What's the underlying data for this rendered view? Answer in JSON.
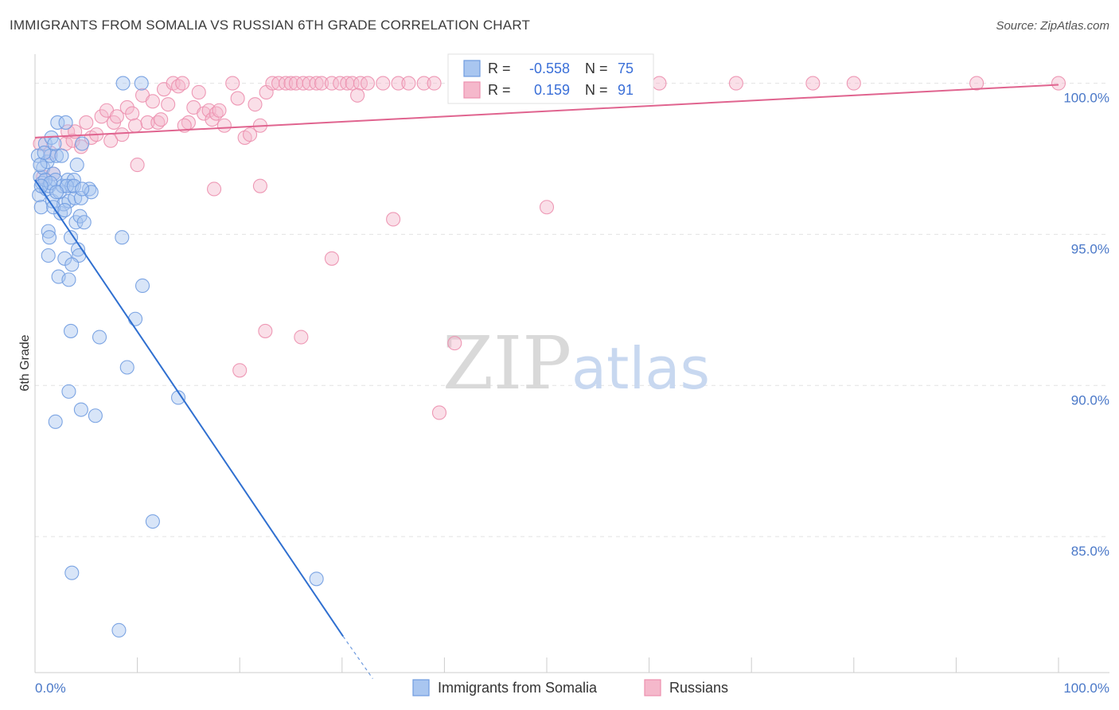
{
  "header": {
    "title": "IMMIGRANTS FROM SOMALIA VS RUSSIAN 6TH GRADE CORRELATION CHART",
    "source": "Source: ZipAtlas.com"
  },
  "colors": {
    "somalia_fill": "#a9c6f0",
    "somalia_stroke": "#6f9be0",
    "somalia_line": "#2f6fd0",
    "russia_fill": "#f5b8cb",
    "russia_stroke": "#ec8fae",
    "russia_line": "#e0648f"
  },
  "watermark": {
    "zip": "ZIP",
    "atlas": "atlas"
  },
  "stats": {
    "r_label": "R =",
    "n_label": "N =",
    "somalia": {
      "r": "-0.558",
      "n": "75"
    },
    "russia": {
      "r": "0.159",
      "n": "91"
    }
  },
  "chart_data": {
    "type": "scatter",
    "title": "IMMIGRANTS FROM SOMALIA VS RUSSIAN 6TH GRADE CORRELATION CHART",
    "xlabel": "",
    "ylabel": "6th Grade",
    "xlim": [
      0,
      100
    ],
    "ylim": [
      80.5,
      100.7
    ],
    "x_tick_labels": [
      {
        "value": 0,
        "label": "0.0%"
      },
      {
        "value": 100,
        "label": "100.0%"
      }
    ],
    "y_tick_labels": [
      {
        "value": 85,
        "label": "85.0%"
      },
      {
        "value": 90,
        "label": "90.0%"
      },
      {
        "value": 95,
        "label": "95.0%"
      },
      {
        "value": 100,
        "label": "100.0%"
      }
    ],
    "legend": [
      "Immigrants from Somalia",
      "Russians"
    ],
    "series": [
      {
        "name": "Immigrants from Somalia",
        "trend": {
          "x0": 0,
          "y0": 96.8,
          "x1": 30.1,
          "y1": 81.7,
          "dashed_to_x": 33.0,
          "dashed_to_y": 80.3
        },
        "points": [
          [
            0.3,
            97.6
          ],
          [
            0.5,
            96.9
          ],
          [
            0.4,
            96.3
          ],
          [
            0.6,
            95.9
          ],
          [
            0.8,
            97.2
          ],
          [
            0.7,
            96.7
          ],
          [
            1.0,
            98.0
          ],
          [
            1.1,
            96.5
          ],
          [
            1.2,
            97.4
          ],
          [
            1.4,
            96.6
          ],
          [
            1.5,
            97.6
          ],
          [
            1.6,
            98.2
          ],
          [
            1.7,
            96.1
          ],
          [
            1.8,
            97.0
          ],
          [
            2.0,
            96.8
          ],
          [
            2.1,
            97.6
          ],
          [
            2.2,
            98.7
          ],
          [
            2.4,
            96.4
          ],
          [
            2.5,
            95.7
          ],
          [
            2.7,
            96.6
          ],
          [
            2.8,
            96.0
          ],
          [
            2.9,
            94.2
          ],
          [
            3.0,
            98.7
          ],
          [
            3.2,
            96.8
          ],
          [
            3.3,
            96.1
          ],
          [
            3.5,
            94.9
          ],
          [
            3.6,
            96.6
          ],
          [
            3.8,
            96.8
          ],
          [
            3.9,
            96.2
          ],
          [
            4.0,
            95.4
          ],
          [
            4.1,
            97.3
          ],
          [
            4.2,
            94.5
          ],
          [
            4.3,
            94.3
          ],
          [
            4.4,
            95.6
          ],
          [
            4.5,
            96.2
          ],
          [
            4.6,
            98.0
          ],
          [
            4.8,
            95.4
          ],
          [
            5.3,
            96.5
          ],
          [
            5.5,
            96.4
          ],
          [
            1.3,
            95.1
          ],
          [
            1.3,
            94.3
          ],
          [
            1.4,
            94.9
          ],
          [
            2.3,
            93.6
          ],
          [
            3.3,
            93.5
          ],
          [
            3.6,
            94.0
          ],
          [
            3.1,
            96.6
          ],
          [
            3.5,
            91.8
          ],
          [
            3.3,
            89.8
          ],
          [
            4.5,
            89.2
          ],
          [
            5.9,
            89.0
          ],
          [
            2.0,
            88.8
          ],
          [
            6.3,
            91.6
          ],
          [
            8.6,
            100.0
          ],
          [
            8.5,
            94.9
          ],
          [
            9.0,
            90.6
          ],
          [
            9.8,
            92.2
          ],
          [
            10.5,
            93.3
          ],
          [
            10.4,
            100.0
          ],
          [
            11.5,
            85.5
          ],
          [
            14.0,
            89.6
          ],
          [
            3.6,
            83.8
          ],
          [
            8.2,
            81.9
          ],
          [
            27.5,
            83.6
          ],
          [
            0.5,
            97.3
          ],
          [
            0.9,
            97.7
          ],
          [
            1.9,
            98.0
          ],
          [
            2.6,
            97.6
          ],
          [
            1.0,
            96.8
          ],
          [
            1.5,
            96.7
          ],
          [
            2.1,
            96.4
          ],
          [
            0.6,
            96.6
          ],
          [
            1.8,
            95.9
          ],
          [
            2.9,
            95.8
          ],
          [
            3.8,
            96.6
          ],
          [
            4.6,
            96.5
          ]
        ]
      },
      {
        "name": "Russians",
        "trend": {
          "x0": 0,
          "y0": 98.2,
          "x1": 100,
          "y1": 99.95
        },
        "points": [
          [
            0.5,
            98.0
          ],
          [
            0.8,
            96.9
          ],
          [
            1.5,
            97.7
          ],
          [
            1.8,
            97.0
          ],
          [
            3.0,
            98.0
          ],
          [
            3.2,
            98.4
          ],
          [
            3.7,
            98.1
          ],
          [
            3.9,
            98.4
          ],
          [
            4.5,
            97.9
          ],
          [
            5.0,
            98.7
          ],
          [
            5.5,
            98.2
          ],
          [
            6.0,
            98.3
          ],
          [
            6.5,
            98.9
          ],
          [
            7.0,
            99.1
          ],
          [
            7.4,
            98.1
          ],
          [
            7.7,
            98.7
          ],
          [
            8.0,
            98.9
          ],
          [
            8.5,
            98.3
          ],
          [
            9.0,
            99.2
          ],
          [
            9.5,
            99.0
          ],
          [
            10.0,
            97.3
          ],
          [
            10.5,
            99.6
          ],
          [
            11.0,
            98.7
          ],
          [
            11.5,
            99.4
          ],
          [
            12.0,
            98.7
          ],
          [
            12.3,
            98.8
          ],
          [
            12.6,
            99.8
          ],
          [
            13.0,
            99.3
          ],
          [
            13.5,
            100.0
          ],
          [
            14.0,
            99.9
          ],
          [
            14.4,
            100.0
          ],
          [
            15.0,
            98.7
          ],
          [
            15.5,
            99.2
          ],
          [
            16.0,
            99.7
          ],
          [
            16.5,
            99.0
          ],
          [
            17.0,
            99.1
          ],
          [
            17.3,
            98.8
          ],
          [
            17.7,
            99.0
          ],
          [
            18.0,
            99.1
          ],
          [
            18.5,
            98.6
          ],
          [
            19.3,
            100.0
          ],
          [
            19.8,
            99.5
          ],
          [
            20.5,
            98.2
          ],
          [
            21.0,
            98.3
          ],
          [
            21.5,
            99.3
          ],
          [
            22.0,
            98.6
          ],
          [
            22.6,
            99.7
          ],
          [
            23.2,
            100.0
          ],
          [
            23.8,
            100.0
          ],
          [
            24.5,
            100.0
          ],
          [
            25.0,
            100.0
          ],
          [
            25.5,
            100.0
          ],
          [
            26.2,
            100.0
          ],
          [
            26.8,
            100.0
          ],
          [
            27.5,
            100.0
          ],
          [
            28.0,
            100.0
          ],
          [
            29.0,
            100.0
          ],
          [
            29.8,
            100.0
          ],
          [
            30.5,
            100.0
          ],
          [
            31.0,
            100.0
          ],
          [
            31.8,
            100.0
          ],
          [
            32.5,
            100.0
          ],
          [
            34.0,
            100.0
          ],
          [
            35.5,
            100.0
          ],
          [
            36.5,
            100.0
          ],
          [
            38.0,
            100.0
          ],
          [
            39.0,
            100.0
          ],
          [
            42.5,
            100.0
          ],
          [
            46.5,
            100.0
          ],
          [
            51.5,
            100.0
          ],
          [
            57.0,
            100.0
          ],
          [
            59.0,
            100.0
          ],
          [
            61.0,
            100.0
          ],
          [
            68.5,
            100.0
          ],
          [
            76.0,
            100.0
          ],
          [
            80.0,
            100.0
          ],
          [
            92.0,
            100.0
          ],
          [
            100.0,
            100.0
          ],
          [
            22.0,
            96.6
          ],
          [
            17.5,
            96.5
          ],
          [
            29.0,
            94.2
          ],
          [
            35.0,
            95.5
          ],
          [
            50.0,
            95.9
          ],
          [
            22.5,
            91.8
          ],
          [
            26.0,
            91.6
          ],
          [
            20.0,
            90.5
          ],
          [
            41.0,
            91.4
          ],
          [
            39.5,
            89.1
          ],
          [
            31.5,
            99.6
          ],
          [
            14.6,
            98.6
          ],
          [
            9.8,
            98.6
          ]
        ]
      }
    ]
  },
  "legend_items": {
    "somalia": "Immigrants from Somalia",
    "russia": "Russians"
  }
}
